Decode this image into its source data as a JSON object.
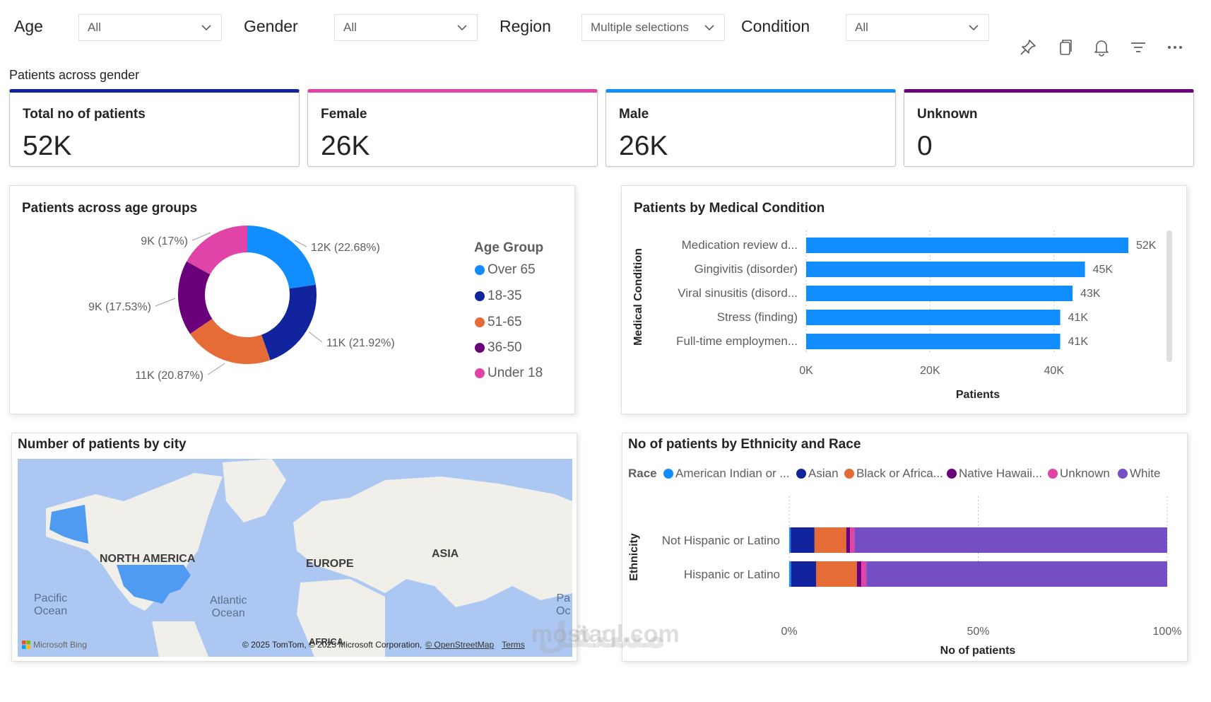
{
  "filters": [
    {
      "label": "Age",
      "value": "All"
    },
    {
      "label": "Gender",
      "value": "All"
    },
    {
      "label": "Region",
      "value": "Multiple selections"
    },
    {
      "label": "Condition",
      "value": "All"
    }
  ],
  "toolbar": [
    "pin-icon",
    "copy-icon",
    "bell-icon",
    "filter-icon",
    "more-icon"
  ],
  "section_title": "Patients across gender",
  "kpis": [
    {
      "title": "Total no of patients",
      "value": "52K",
      "color": "#12239e"
    },
    {
      "title": "Female",
      "value": "26K",
      "color": "#e044a7"
    },
    {
      "title": "Male",
      "value": "26K",
      "color": "#118dff"
    },
    {
      "title": "Unknown",
      "value": "0",
      "color": "#6b007b"
    }
  ],
  "age_panel": {
    "title": "Patients across age groups",
    "legend_title": "Age Group"
  },
  "condition_panel": {
    "title": "Patients by Medical Condition"
  },
  "map_panel": {
    "title": "Number of patients by city",
    "labels": {
      "north_america": "NORTH AMERICA",
      "europe": "EUROPE",
      "asia": "ASIA",
      "africa": "AFRICA"
    },
    "oceans": {
      "pacific_1": "Pacific",
      "pacific_2": "Ocean",
      "atlantic_1": "Atlantic",
      "atlantic_2": "Ocean",
      "pacific_right_1": "Pa",
      "pacific_right_2": "Oc"
    },
    "bing": "Microsoft Bing",
    "copyright": "© 2025 TomTom, © 2025 Microsoft Corporation,",
    "osm": "© OpenStreetMap",
    "terms": "Terms"
  },
  "ethnicity_panel": {
    "title": "No of patients by Ethnicity and Race",
    "legend_title": "Race"
  },
  "watermark": "mostaql.com",
  "watermark_ar": "مستقل",
  "chart_data": [
    {
      "type": "pie",
      "title": "Patients across age groups",
      "legend_title": "Age Group",
      "slices": [
        {
          "name": "Over 65",
          "value": 12,
          "label": "12K (22.68%)",
          "color": "#118dff"
        },
        {
          "name": "18-35",
          "value": 11,
          "label": "11K (21.92%)",
          "color": "#12239e"
        },
        {
          "name": "51-65",
          "value": 11,
          "label": "11K (20.87%)",
          "color": "#e66c37"
        },
        {
          "name": "36-50",
          "value": 9,
          "label": "9K (17.53%)",
          "color": "#6b007b"
        },
        {
          "name": "Under 18",
          "value": 9,
          "label": "9K (17%)",
          "color": "#e044a7"
        }
      ],
      "percentages": [
        22.68,
        21.92,
        20.87,
        17.53,
        17.0
      ],
      "donut": true
    },
    {
      "type": "bar",
      "orientation": "horizontal",
      "title": "Patients by Medical Condition",
      "categories": [
        "Medication review d...",
        "Gingivitis (disorder)",
        "Viral sinusitis (disord...",
        "Stress (finding)",
        "Full-time employmen..."
      ],
      "values": [
        52000,
        45000,
        43000,
        41000,
        41000
      ],
      "data_labels": [
        "52K",
        "45K",
        "43K",
        "41K",
        "41K"
      ],
      "xlabel": "Patients",
      "ylabel": "Medical Condition",
      "xlim": [
        0,
        52000
      ],
      "xticks": [
        0,
        20000,
        40000
      ],
      "xtick_labels": [
        "0K",
        "20K",
        "40K"
      ],
      "color": "#118dff",
      "grid": true
    },
    {
      "type": "bar",
      "orientation": "horizontal",
      "stacked": "percent",
      "title": "No of patients by Ethnicity and Race",
      "categories": [
        "Not Hispanic or Latino",
        "Hispanic or Latino"
      ],
      "xlabel": "No of patients",
      "ylabel": "Ethnicity",
      "xtick_labels": [
        "0%",
        "50%",
        "100%"
      ],
      "legend_title": "Race",
      "series": [
        {
          "name": "American Indian or ...",
          "color": "#118dff",
          "values": [
            0.4,
            0.5
          ]
        },
        {
          "name": "Asian",
          "color": "#12239e",
          "values": [
            6.3,
            6.6
          ]
        },
        {
          "name": "Black or Africa...",
          "color": "#e66c37",
          "values": [
            8.4,
            10.8
          ]
        },
        {
          "name": "Native Hawaii...",
          "color": "#6b007b",
          "values": [
            1.0,
            1.2
          ]
        },
        {
          "name": "Unknown",
          "color": "#e044a7",
          "values": [
            1.2,
            1.3
          ]
        },
        {
          "name": "White",
          "color": "#744ec2",
          "values": [
            82.7,
            79.6
          ]
        }
      ]
    }
  ]
}
